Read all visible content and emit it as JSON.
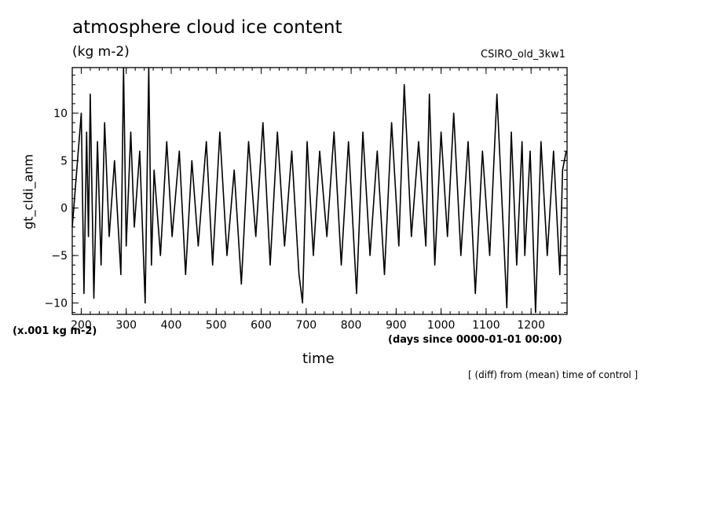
{
  "chart_data": {
    "type": "line",
    "title": "atmosphere cloud ice content",
    "units": "(kg m-2)",
    "model": "CSIRO_old_3kw1",
    "ylabel": "gt_cldi_anm",
    "xlabel": "time",
    "x_units": "(days since 0000-01-01 00:00)",
    "y_scale_note": "(x.001 kg m-2)",
    "note": "[ (diff) from (mean) time of control ]",
    "xlim": [
      180,
      1280
    ],
    "ylim": [
      -11.2,
      14.8
    ],
    "x_ticks": [
      200,
      300,
      400,
      500,
      600,
      700,
      800,
      900,
      1000,
      1100,
      1200
    ],
    "x_tick_labels": [
      "200",
      "300",
      "400",
      "500",
      "600",
      "700",
      "800",
      "900",
      "1000",
      "1100",
      "1200"
    ],
    "y_ticks": [
      -10,
      -5,
      0,
      5,
      10
    ],
    "y_tick_labels": [
      "-10",
      "-5",
      "0",
      "5",
      "10"
    ],
    "line_color": "#000000",
    "series": [
      {
        "x": [
          180,
          200,
          206,
          212,
          216,
          220,
          228,
          236,
          244,
          252,
          262,
          274,
          288,
          294,
          300,
          310,
          318,
          330,
          342,
          350,
          356,
          362,
          376,
          390,
          402,
          418,
          432,
          446,
          460,
          478,
          492,
          508,
          524,
          540,
          556,
          572,
          588,
          604,
          620,
          636,
          652,
          668,
          684,
          692,
          702,
          716,
          730,
          746,
          762,
          778,
          794,
          812,
          826,
          842,
          858,
          874,
          890,
          906,
          918,
          934,
          950,
          966,
          974,
          986,
          1000,
          1014,
          1028,
          1044,
          1060,
          1076,
          1092,
          1108,
          1124,
          1140,
          1146,
          1156,
          1168,
          1180,
          1186,
          1198,
          1210,
          1222,
          1236,
          1250,
          1264,
          1270,
          1278
        ],
        "y": [
          -2,
          10,
          -9,
          8,
          -3,
          12,
          -9.5,
          7,
          -6,
          9,
          -3,
          5,
          -7,
          14.8,
          -4,
          8,
          -2,
          6,
          -10,
          14.8,
          -6,
          4,
          -5,
          7,
          -3,
          6,
          -7,
          5,
          -4,
          7,
          -6,
          8,
          -5,
          4,
          -8,
          7,
          -3,
          9,
          -6,
          8,
          -4,
          6,
          -7,
          -10,
          7,
          -5,
          6,
          -3,
          8,
          -6,
          7,
          -9,
          8,
          -5,
          6,
          -7,
          9,
          -4,
          13,
          -3,
          7,
          -4,
          12,
          -6,
          8,
          -3,
          10,
          -5,
          7,
          -9,
          6,
          -5,
          12,
          -4,
          -10.5,
          8,
          -6,
          7,
          -5,
          6,
          -11,
          7,
          -5,
          6,
          -7,
          4,
          6
        ]
      }
    ]
  }
}
